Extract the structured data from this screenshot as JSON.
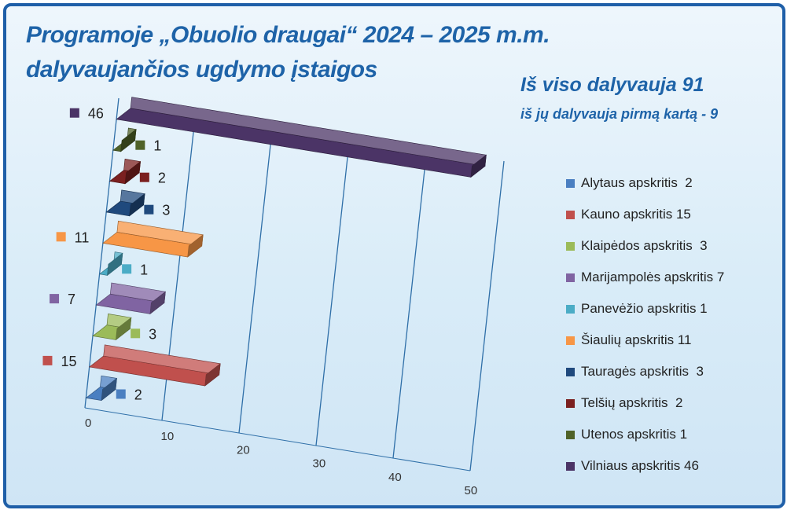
{
  "title_line1": "Programoje „Obuolio draugai“  2024 – 2025 m.m.",
  "title_line2": "dalyvaujančios ugdymo įstaigos",
  "total_line": "Iš viso dalyvauja  91",
  "total_sub": "iš jų dalyvauja pirmą kartą - 9",
  "chart_data": {
    "type": "bar",
    "orientation": "horizontal",
    "three_d": true,
    "xlim": [
      0,
      50
    ],
    "x_ticks": [
      "0",
      "10",
      "20",
      "30",
      "40",
      "50"
    ],
    "legend_position": "right",
    "series": [
      {
        "name": "Alytaus apskritis  2",
        "value": 2,
        "label": "2",
        "color": "#4a7fc1"
      },
      {
        "name": "Kauno apskritis 15",
        "value": 15,
        "label": "15",
        "color": "#c0504d"
      },
      {
        "name": "Klaipėdos apskritis  3",
        "value": 3,
        "label": "3",
        "color": "#9bbb59"
      },
      {
        "name": "Marijampolės apskritis 7",
        "value": 7,
        "label": "7",
        "color": "#8064a2"
      },
      {
        "name": "Panevėžio apskritis 1",
        "value": 1,
        "label": "1",
        "color": "#4bacc6"
      },
      {
        "name": "Šiaulių apskritis 11",
        "value": 11,
        "label": "11",
        "color": "#f79646"
      },
      {
        "name": "Tauragės apskritis  3",
        "value": 3,
        "label": "3",
        "color": "#1f497d"
      },
      {
        "name": "Telšių apskritis  2",
        "value": 2,
        "label": "2",
        "color": "#7b2020"
      },
      {
        "name": "Utenos apskritis 1",
        "value": 1,
        "label": "1",
        "color": "#4f6228"
      },
      {
        "name": "Vilniaus apskritis 46",
        "value": 46,
        "label": "46",
        "color": "#4b3466"
      }
    ]
  }
}
